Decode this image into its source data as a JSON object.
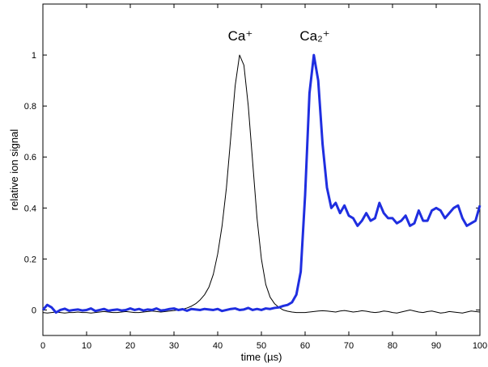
{
  "chart_data": {
    "type": "line",
    "xlabel": "time (µs)",
    "ylabel": "relative ion signal",
    "annotations": [
      "Ca⁺",
      "Ca₂⁺"
    ],
    "x": [
      0,
      1,
      2,
      3,
      4,
      5,
      6,
      7,
      8,
      9,
      10,
      11,
      12,
      13,
      14,
      15,
      16,
      17,
      18,
      19,
      20,
      21,
      22,
      23,
      24,
      25,
      26,
      27,
      28,
      29,
      30,
      31,
      32,
      33,
      34,
      35,
      36,
      37,
      38,
      39,
      40,
      41,
      42,
      43,
      44,
      45,
      46,
      47,
      48,
      49,
      50,
      51,
      52,
      53,
      54,
      55,
      56,
      57,
      58,
      59,
      60,
      61,
      62,
      63,
      64,
      65,
      66,
      67,
      68,
      69,
      70,
      71,
      72,
      73,
      74,
      75,
      76,
      77,
      78,
      79,
      80,
      81,
      82,
      83,
      84,
      85,
      86,
      87,
      88,
      89,
      90,
      91,
      92,
      93,
      94,
      95,
      96,
      97,
      98,
      99,
      100
    ],
    "series": [
      {
        "color": "#000000",
        "width": 1,
        "values": [
          -0.01,
          -0.012,
          -0.01,
          -0.008,
          -0.01,
          -0.012,
          -0.01,
          -0.01,
          -0.008,
          -0.01,
          -0.01,
          -0.012,
          -0.01,
          -0.008,
          -0.006,
          -0.008,
          -0.01,
          -0.01,
          -0.008,
          -0.006,
          -0.008,
          -0.01,
          -0.01,
          -0.008,
          -0.006,
          -0.004,
          -0.006,
          -0.008,
          -0.006,
          -0.004,
          -0.002,
          0,
          0.003,
          0.008,
          0.015,
          0.025,
          0.04,
          0.06,
          0.09,
          0.14,
          0.22,
          0.33,
          0.48,
          0.68,
          0.88,
          1.0,
          0.96,
          0.8,
          0.58,
          0.36,
          0.2,
          0.1,
          0.05,
          0.025,
          0.01,
          0,
          -0.005,
          -0.008,
          -0.01,
          -0.01,
          -0.01,
          -0.008,
          -0.006,
          -0.004,
          -0.003,
          -0.004,
          -0.006,
          -0.008,
          -0.004,
          -0.002,
          -0.005,
          -0.008,
          -0.006,
          -0.003,
          -0.005,
          -0.008,
          -0.01,
          -0.008,
          -0.004,
          -0.006,
          -0.01,
          -0.012,
          -0.008,
          -0.004,
          0,
          -0.004,
          -0.008,
          -0.01,
          -0.006,
          -0.004,
          -0.008,
          -0.012,
          -0.01,
          -0.006,
          -0.008,
          -0.01,
          -0.012,
          -0.008,
          -0.004,
          -0.006,
          -0.008
        ]
      },
      {
        "color": "#1f2ee0",
        "width": 3,
        "values": [
          0,
          0.02,
          0.01,
          -0.01,
          0,
          0.005,
          -0.003,
          0,
          0.002,
          -0.002,
          0,
          0.006,
          -0.004,
          0,
          0.004,
          -0.003,
          0,
          0.002,
          -0.002,
          0,
          0.006,
          0,
          0.004,
          -0.002,
          0.002,
          0,
          0.006,
          -0.002,
          0,
          0.004,
          0.006,
          0,
          0.003,
          -0.003,
          0.004,
          0.002,
          0,
          0.004,
          0.002,
          0,
          0.004,
          -0.004,
          0,
          0.004,
          0.006,
          0,
          0.002,
          0.008,
          0,
          0.004,
          0,
          0.006,
          0.004,
          0.008,
          0.01,
          0.016,
          0.02,
          0.03,
          0.06,
          0.15,
          0.45,
          0.85,
          1.0,
          0.9,
          0.65,
          0.48,
          0.4,
          0.42,
          0.38,
          0.41,
          0.37,
          0.36,
          0.33,
          0.35,
          0.38,
          0.35,
          0.36,
          0.42,
          0.38,
          0.36,
          0.36,
          0.34,
          0.35,
          0.37,
          0.33,
          0.34,
          0.39,
          0.35,
          0.35,
          0.39,
          0.4,
          0.39,
          0.36,
          0.38,
          0.4,
          0.41,
          0.36,
          0.33,
          0.34,
          0.35,
          0.41
        ]
      }
    ],
    "xlim": [
      0,
      100
    ],
    "xticks": [
      0,
      10,
      20,
      30,
      40,
      50,
      60,
      70,
      80,
      90,
      100
    ],
    "ylim": [
      -0.1,
      1.2
    ],
    "yticks": [
      0,
      0.2,
      0.4,
      0.6,
      0.8,
      1
    ]
  }
}
